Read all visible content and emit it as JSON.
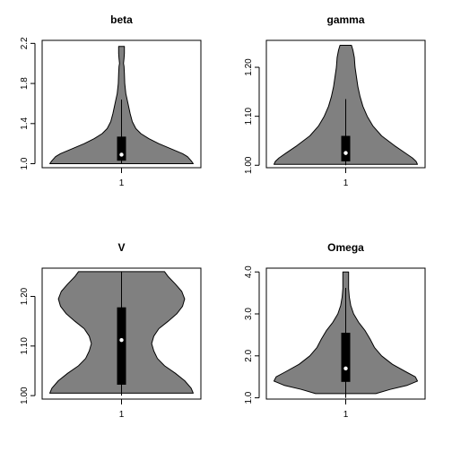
{
  "chart_data": [
    {
      "type": "violin",
      "title": "beta",
      "categories": [
        "1"
      ],
      "ylim": [
        0.96,
        2.23
      ],
      "yticks": [
        1.0,
        1.4,
        1.8,
        2.2
      ],
      "ytick_labels": [
        "1.0",
        "1.4",
        "1.8",
        "2.2"
      ],
      "box": {
        "min": 1.0,
        "q1": 1.03,
        "median": 1.09,
        "q3": 1.27,
        "max": 1.64
      },
      "density": [
        {
          "y": 1.0,
          "w": 1.0
        },
        {
          "y": 1.03,
          "w": 0.97
        },
        {
          "y": 1.07,
          "w": 0.92
        },
        {
          "y": 1.1,
          "w": 0.85
        },
        {
          "y": 1.14,
          "w": 0.72
        },
        {
          "y": 1.2,
          "w": 0.52
        },
        {
          "y": 1.25,
          "w": 0.38
        },
        {
          "y": 1.3,
          "w": 0.27
        },
        {
          "y": 1.35,
          "w": 0.2
        },
        {
          "y": 1.42,
          "w": 0.15
        },
        {
          "y": 1.5,
          "w": 0.12
        },
        {
          "y": 1.6,
          "w": 0.09
        },
        {
          "y": 1.7,
          "w": 0.06
        },
        {
          "y": 1.8,
          "w": 0.045
        },
        {
          "y": 1.9,
          "w": 0.04
        },
        {
          "y": 1.97,
          "w": 0.035
        },
        {
          "y": 2.0,
          "w": 0.028
        },
        {
          "y": 2.05,
          "w": 0.035
        },
        {
          "y": 2.1,
          "w": 0.04
        },
        {
          "y": 2.17,
          "w": 0.04
        }
      ]
    },
    {
      "type": "violin",
      "title": "gamma",
      "categories": [
        "1"
      ],
      "ylim": [
        0.995,
        1.255
      ],
      "yticks": [
        1.0,
        1.1,
        1.2
      ],
      "ytick_labels": [
        "1.00",
        "1.10",
        "1.20"
      ],
      "box": {
        "min": 1.0,
        "q1": 1.008,
        "median": 1.025,
        "q3": 1.06,
        "max": 1.135
      },
      "density": [
        {
          "y": 1.002,
          "w": 1.0
        },
        {
          "y": 1.008,
          "w": 0.98
        },
        {
          "y": 1.015,
          "w": 0.93
        },
        {
          "y": 1.025,
          "w": 0.83
        },
        {
          "y": 1.04,
          "w": 0.68
        },
        {
          "y": 1.06,
          "w": 0.5
        },
        {
          "y": 1.08,
          "w": 0.38
        },
        {
          "y": 1.1,
          "w": 0.3
        },
        {
          "y": 1.12,
          "w": 0.24
        },
        {
          "y": 1.14,
          "w": 0.2
        },
        {
          "y": 1.16,
          "w": 0.17
        },
        {
          "y": 1.18,
          "w": 0.15
        },
        {
          "y": 1.2,
          "w": 0.13
        },
        {
          "y": 1.22,
          "w": 0.12
        },
        {
          "y": 1.235,
          "w": 0.1
        },
        {
          "y": 1.245,
          "w": 0.08
        }
      ]
    },
    {
      "type": "violin",
      "title": "V",
      "categories": [
        "1"
      ],
      "ylim": [
        0.993,
        1.257
      ],
      "yticks": [
        1.0,
        1.1,
        1.2
      ],
      "ytick_labels": [
        "1.00",
        "1.10",
        "1.20"
      ],
      "box": {
        "min": 1.0,
        "q1": 1.022,
        "median": 1.112,
        "q3": 1.178,
        "max": 1.25
      },
      "density": [
        {
          "y": 1.005,
          "w": 1.0
        },
        {
          "y": 1.015,
          "w": 0.97
        },
        {
          "y": 1.03,
          "w": 0.88
        },
        {
          "y": 1.045,
          "w": 0.75
        },
        {
          "y": 1.06,
          "w": 0.6
        },
        {
          "y": 1.075,
          "w": 0.5
        },
        {
          "y": 1.09,
          "w": 0.45
        },
        {
          "y": 1.105,
          "w": 0.42
        },
        {
          "y": 1.12,
          "w": 0.45
        },
        {
          "y": 1.135,
          "w": 0.52
        },
        {
          "y": 1.15,
          "w": 0.65
        },
        {
          "y": 1.165,
          "w": 0.77
        },
        {
          "y": 1.18,
          "w": 0.85
        },
        {
          "y": 1.195,
          "w": 0.88
        },
        {
          "y": 1.21,
          "w": 0.84
        },
        {
          "y": 1.225,
          "w": 0.75
        },
        {
          "y": 1.24,
          "w": 0.65
        },
        {
          "y": 1.25,
          "w": 0.6
        }
      ]
    },
    {
      "type": "violin",
      "title": "Omega",
      "categories": [
        "1"
      ],
      "ylim": [
        0.97,
        4.09
      ],
      "yticks": [
        1.0,
        2.0,
        3.0,
        4.0
      ],
      "ytick_labels": [
        "1.0",
        "2.0",
        "3.0",
        "4.0"
      ],
      "box": {
        "min": 1.0,
        "q1": 1.38,
        "median": 1.7,
        "q3": 2.55,
        "max": 3.62
      },
      "density": [
        {
          "y": 1.1,
          "w": 0.42
        },
        {
          "y": 1.2,
          "w": 0.62
        },
        {
          "y": 1.3,
          "w": 0.86
        },
        {
          "y": 1.4,
          "w": 1.0
        },
        {
          "y": 1.5,
          "w": 0.97
        },
        {
          "y": 1.6,
          "w": 0.86
        },
        {
          "y": 1.8,
          "w": 0.65
        },
        {
          "y": 2.0,
          "w": 0.5
        },
        {
          "y": 2.2,
          "w": 0.4
        },
        {
          "y": 2.4,
          "w": 0.34
        },
        {
          "y": 2.6,
          "w": 0.27
        },
        {
          "y": 2.8,
          "w": 0.18
        },
        {
          "y": 3.0,
          "w": 0.11
        },
        {
          "y": 3.2,
          "w": 0.07
        },
        {
          "y": 3.4,
          "w": 0.05
        },
        {
          "y": 3.6,
          "w": 0.04
        },
        {
          "y": 3.8,
          "w": 0.04
        },
        {
          "y": 4.0,
          "w": 0.04
        }
      ]
    }
  ]
}
